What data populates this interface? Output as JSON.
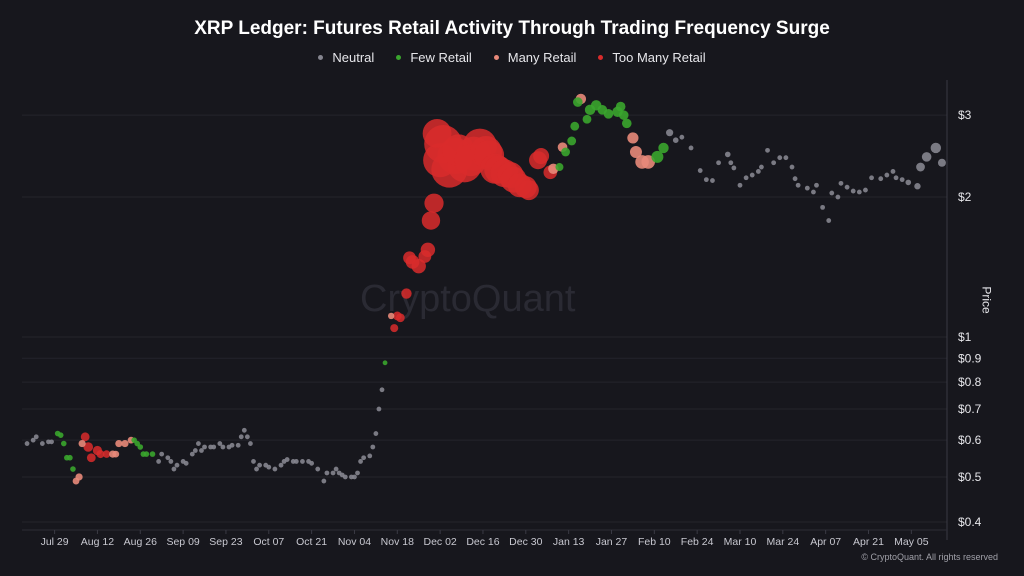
{
  "chart_data": {
    "type": "scatter",
    "title": "XRP Ledger: Futures Retail Activity Through Trading Frequency Surge",
    "ylabel": "Price",
    "y_scale": "log",
    "ylim": [
      0.4,
      3.4
    ],
    "xlim": [
      "2024-07-19",
      "2025-05-16"
    ],
    "grid": true,
    "legend_placement": "top",
    "y_ticks": [
      {
        "value": 3,
        "label": "$3"
      },
      {
        "value": 2,
        "label": "$2"
      },
      {
        "value": 1,
        "label": "$1"
      },
      {
        "value": 0.9,
        "label": "$0.9"
      },
      {
        "value": 0.8,
        "label": "$0.8"
      },
      {
        "value": 0.7,
        "label": "$0.7"
      },
      {
        "value": 0.6,
        "label": "$0.6"
      },
      {
        "value": 0.5,
        "label": "$0.5"
      },
      {
        "value": 0.4,
        "label": "$0.4"
      }
    ],
    "x_ticks": [
      {
        "date": "2024-07-29",
        "label": "Jul 29"
      },
      {
        "date": "2024-08-12",
        "label": "Aug 12"
      },
      {
        "date": "2024-08-26",
        "label": "Aug 26"
      },
      {
        "date": "2024-09-09",
        "label": "Sep 09"
      },
      {
        "date": "2024-09-23",
        "label": "Sep 23"
      },
      {
        "date": "2024-10-07",
        "label": "Oct 07"
      },
      {
        "date": "2024-10-21",
        "label": "Oct 21"
      },
      {
        "date": "2024-11-04",
        "label": "Nov 04"
      },
      {
        "date": "2024-11-18",
        "label": "Nov 18"
      },
      {
        "date": "2024-12-02",
        "label": "Dec 02"
      },
      {
        "date": "2024-12-16",
        "label": "Dec 16"
      },
      {
        "date": "2024-12-30",
        "label": "Dec 30"
      },
      {
        "date": "2025-01-13",
        "label": "Jan 13"
      },
      {
        "date": "2025-01-27",
        "label": "Jan 27"
      },
      {
        "date": "2025-02-10",
        "label": "Feb 10"
      },
      {
        "date": "2025-02-24",
        "label": "Feb 24"
      },
      {
        "date": "2025-03-10",
        "label": "Mar 10"
      },
      {
        "date": "2025-03-24",
        "label": "Mar 24"
      },
      {
        "date": "2025-04-07",
        "label": "Apr 07"
      },
      {
        "date": "2025-04-21",
        "label": "Apr 21"
      },
      {
        "date": "2025-05-05",
        "label": "May 05"
      }
    ],
    "categories": [
      {
        "key": "n",
        "name": "Neutral",
        "color": "#85858f"
      },
      {
        "key": "f",
        "name": "Few Retail",
        "color": "#3aa52e"
      },
      {
        "key": "m",
        "name": "Many Retail",
        "color": "#e8897a"
      },
      {
        "key": "t",
        "name": "Too Many Retail",
        "color": "#d92b2b"
      }
    ],
    "point_fields": [
      "date",
      "price",
      "category",
      "relative_size"
    ],
    "points": [
      [
        "2024-07-20",
        0.59,
        "n",
        1.2
      ],
      [
        "2024-07-22",
        0.6,
        "n",
        1.2
      ],
      [
        "2024-07-23",
        0.61,
        "n",
        1.2
      ],
      [
        "2024-07-25",
        0.59,
        "n",
        1.2
      ],
      [
        "2024-07-27",
        0.595,
        "n",
        1.2
      ],
      [
        "2024-07-28",
        0.595,
        "n",
        1.2
      ],
      [
        "2024-07-30",
        0.62,
        "f",
        1.4
      ],
      [
        "2024-07-31",
        0.615,
        "f",
        1.4
      ],
      [
        "2024-08-01",
        0.59,
        "f",
        1.4
      ],
      [
        "2024-08-02",
        0.55,
        "f",
        1.4
      ],
      [
        "2024-08-03",
        0.55,
        "f",
        1.4
      ],
      [
        "2024-08-04",
        0.52,
        "f",
        1.4
      ],
      [
        "2024-08-05",
        0.49,
        "m",
        1.7
      ],
      [
        "2024-08-06",
        0.5,
        "m",
        1.8
      ],
      [
        "2024-08-07",
        0.59,
        "m",
        1.8
      ],
      [
        "2024-08-08",
        0.61,
        "t",
        2.2
      ],
      [
        "2024-08-09",
        0.58,
        "t",
        2.4
      ],
      [
        "2024-08-10",
        0.55,
        "t",
        2.2
      ],
      [
        "2024-08-12",
        0.57,
        "t",
        2.3
      ],
      [
        "2024-08-13",
        0.56,
        "t",
        2.0
      ],
      [
        "2024-08-15",
        0.56,
        "t",
        1.9
      ],
      [
        "2024-08-17",
        0.56,
        "m",
        1.8
      ],
      [
        "2024-08-18",
        0.56,
        "m",
        1.7
      ],
      [
        "2024-08-19",
        0.59,
        "m",
        1.8
      ],
      [
        "2024-08-21",
        0.59,
        "m",
        1.8
      ],
      [
        "2024-08-23",
        0.6,
        "m",
        1.7
      ],
      [
        "2024-08-24",
        0.6,
        "f",
        1.4
      ],
      [
        "2024-08-25",
        0.59,
        "f",
        1.4
      ],
      [
        "2024-08-26",
        0.58,
        "f",
        1.4
      ],
      [
        "2024-08-27",
        0.56,
        "f",
        1.4
      ],
      [
        "2024-08-28",
        0.56,
        "f",
        1.4
      ],
      [
        "2024-08-30",
        0.56,
        "f",
        1.4
      ],
      [
        "2024-09-01",
        0.54,
        "n",
        1.2
      ],
      [
        "2024-09-02",
        0.56,
        "n",
        1.2
      ],
      [
        "2024-09-04",
        0.55,
        "n",
        1.2
      ],
      [
        "2024-09-05",
        0.54,
        "n",
        1.2
      ],
      [
        "2024-09-06",
        0.52,
        "n",
        1.2
      ],
      [
        "2024-09-07",
        0.53,
        "n",
        1.2
      ],
      [
        "2024-09-09",
        0.54,
        "n",
        1.2
      ],
      [
        "2024-09-10",
        0.535,
        "n",
        1.2
      ],
      [
        "2024-09-12",
        0.56,
        "n",
        1.2
      ],
      [
        "2024-09-13",
        0.57,
        "n",
        1.2
      ],
      [
        "2024-09-14",
        0.59,
        "n",
        1.2
      ],
      [
        "2024-09-15",
        0.57,
        "n",
        1.2
      ],
      [
        "2024-09-16",
        0.58,
        "n",
        1.2
      ],
      [
        "2024-09-18",
        0.58,
        "n",
        1.2
      ],
      [
        "2024-09-19",
        0.58,
        "n",
        1.2
      ],
      [
        "2024-09-21",
        0.59,
        "n",
        1.2
      ],
      [
        "2024-09-22",
        0.58,
        "n",
        1.2
      ],
      [
        "2024-09-24",
        0.58,
        "n",
        1.2
      ],
      [
        "2024-09-25",
        0.585,
        "n",
        1.2
      ],
      [
        "2024-09-27",
        0.585,
        "n",
        1.2
      ],
      [
        "2024-09-28",
        0.61,
        "n",
        1.2
      ],
      [
        "2024-09-29",
        0.63,
        "n",
        1.2
      ],
      [
        "2024-09-30",
        0.61,
        "n",
        1.2
      ],
      [
        "2024-10-01",
        0.59,
        "n",
        1.2
      ],
      [
        "2024-10-02",
        0.54,
        "n",
        1.2
      ],
      [
        "2024-10-03",
        0.52,
        "n",
        1.2
      ],
      [
        "2024-10-04",
        0.53,
        "n",
        1.2
      ],
      [
        "2024-10-06",
        0.53,
        "n",
        1.2
      ],
      [
        "2024-10-07",
        0.525,
        "n",
        1.2
      ],
      [
        "2024-10-09",
        0.52,
        "n",
        1.2
      ],
      [
        "2024-10-11",
        0.53,
        "n",
        1.2
      ],
      [
        "2024-10-12",
        0.54,
        "n",
        1.2
      ],
      [
        "2024-10-13",
        0.545,
        "n",
        1.2
      ],
      [
        "2024-10-15",
        0.54,
        "n",
        1.2
      ],
      [
        "2024-10-16",
        0.54,
        "n",
        1.2
      ],
      [
        "2024-10-18",
        0.54,
        "n",
        1.2
      ],
      [
        "2024-10-20",
        0.54,
        "n",
        1.2
      ],
      [
        "2024-10-21",
        0.535,
        "n",
        1.2
      ],
      [
        "2024-10-23",
        0.52,
        "n",
        1.2
      ],
      [
        "2024-10-25",
        0.49,
        "n",
        1.2
      ],
      [
        "2024-10-26",
        0.51,
        "n",
        1.2
      ],
      [
        "2024-10-28",
        0.51,
        "n",
        1.2
      ],
      [
        "2024-10-29",
        0.52,
        "n",
        1.2
      ],
      [
        "2024-10-30",
        0.51,
        "n",
        1.2
      ],
      [
        "2024-10-31",
        0.505,
        "n",
        1.2
      ],
      [
        "2024-11-01",
        0.5,
        "n",
        1.2
      ],
      [
        "2024-11-03",
        0.5,
        "n",
        1.2
      ],
      [
        "2024-11-04",
        0.5,
        "n",
        1.2
      ],
      [
        "2024-11-05",
        0.51,
        "n",
        1.2
      ],
      [
        "2024-11-06",
        0.54,
        "n",
        1.2
      ],
      [
        "2024-11-07",
        0.55,
        "n",
        1.2
      ],
      [
        "2024-11-09",
        0.555,
        "n",
        1.2
      ],
      [
        "2024-11-10",
        0.58,
        "n",
        1.2
      ],
      [
        "2024-11-11",
        0.62,
        "n",
        1.2
      ],
      [
        "2024-11-12",
        0.7,
        "n",
        1.2
      ],
      [
        "2024-11-13",
        0.77,
        "n",
        1.2
      ],
      [
        "2024-11-14",
        0.88,
        "f",
        1.2
      ],
      [
        "2024-11-16",
        1.11,
        "m",
        1.6
      ],
      [
        "2024-11-17",
        1.045,
        "t",
        2.0
      ],
      [
        "2024-11-18",
        1.11,
        "t",
        2.2
      ],
      [
        "2024-11-19",
        1.1,
        "t",
        2.2
      ],
      [
        "2024-11-21",
        1.24,
        "t",
        2.6
      ],
      [
        "2024-11-22",
        1.48,
        "t",
        3.2
      ],
      [
        "2024-11-23",
        1.45,
        "t",
        3.4
      ],
      [
        "2024-11-25",
        1.42,
        "t",
        3.6
      ],
      [
        "2024-11-27",
        1.49,
        "t",
        3.2
      ],
      [
        "2024-11-28",
        1.54,
        "t",
        3.6
      ],
      [
        "2024-11-29",
        1.78,
        "t",
        4.6
      ],
      [
        "2024-11-30",
        1.94,
        "t",
        4.8
      ],
      [
        "2024-12-01",
        2.74,
        "t",
        7.2
      ],
      [
        "2024-12-02",
        2.4,
        "t",
        8.5
      ],
      [
        "2024-12-03",
        2.6,
        "t",
        9.5
      ],
      [
        "2024-12-05",
        2.29,
        "t",
        9.0
      ],
      [
        "2024-12-07",
        2.45,
        "t",
        9.0
      ],
      [
        "2024-12-08",
        2.52,
        "t",
        8.0
      ],
      [
        "2024-12-10",
        2.34,
        "t",
        8.5
      ],
      [
        "2024-12-12",
        2.4,
        "t",
        8.0
      ],
      [
        "2024-12-13",
        2.48,
        "t",
        8.5
      ],
      [
        "2024-12-15",
        2.58,
        "t",
        8.5
      ],
      [
        "2024-12-17",
        2.5,
        "t",
        8.0
      ],
      [
        "2024-12-18",
        2.46,
        "t",
        7.5
      ],
      [
        "2024-12-20",
        2.3,
        "t",
        7.5
      ],
      [
        "2024-12-21",
        2.29,
        "t",
        7.0
      ],
      [
        "2024-12-23",
        2.25,
        "t",
        7.0
      ],
      [
        "2024-12-25",
        2.23,
        "t",
        6.5
      ],
      [
        "2024-12-26",
        2.18,
        "t",
        6.5
      ],
      [
        "2024-12-28",
        2.12,
        "t",
        6.0
      ],
      [
        "2024-12-30",
        2.1,
        "t",
        5.5
      ],
      [
        "2024-12-31",
        2.07,
        "t",
        5.0
      ],
      [
        "2025-01-03",
        2.4,
        "t",
        4.5
      ],
      [
        "2025-01-04",
        2.45,
        "t",
        4.0
      ],
      [
        "2025-01-07",
        2.26,
        "t",
        3.4
      ],
      [
        "2025-01-08",
        2.3,
        "m",
        2.6
      ],
      [
        "2025-01-10",
        2.32,
        "f",
        2.0
      ],
      [
        "2025-01-11",
        2.56,
        "m",
        2.4
      ],
      [
        "2025-01-12",
        2.5,
        "f",
        2.2
      ],
      [
        "2025-01-14",
        2.64,
        "f",
        2.2
      ],
      [
        "2025-01-15",
        2.84,
        "f",
        2.2
      ],
      [
        "2025-01-16",
        3.2,
        "f",
        2.4
      ],
      [
        "2025-01-17",
        3.25,
        "m",
        2.6
      ],
      [
        "2025-01-19",
        2.94,
        "f",
        2.2
      ],
      [
        "2025-01-20",
        3.08,
        "f",
        2.6
      ],
      [
        "2025-01-22",
        3.15,
        "f",
        2.6
      ],
      [
        "2025-01-24",
        3.08,
        "f",
        2.4
      ],
      [
        "2025-01-26",
        3.02,
        "f",
        2.4
      ],
      [
        "2025-01-29",
        3.05,
        "f",
        2.6
      ],
      [
        "2025-01-30",
        3.13,
        "f",
        2.4
      ],
      [
        "2025-01-31",
        3.0,
        "f",
        2.4
      ],
      [
        "2025-02-01",
        2.88,
        "f",
        2.4
      ],
      [
        "2025-02-03",
        2.68,
        "m",
        2.8
      ],
      [
        "2025-02-04",
        2.5,
        "m",
        3.0
      ],
      [
        "2025-02-06",
        2.38,
        "m",
        3.4
      ],
      [
        "2025-02-08",
        2.38,
        "m",
        3.4
      ],
      [
        "2025-02-11",
        2.44,
        "f",
        3.0
      ],
      [
        "2025-02-13",
        2.55,
        "f",
        2.6
      ],
      [
        "2025-02-15",
        2.75,
        "n",
        1.8
      ],
      [
        "2025-02-17",
        2.65,
        "n",
        1.4
      ],
      [
        "2025-02-19",
        2.69,
        "n",
        1.2
      ],
      [
        "2025-02-22",
        2.55,
        "n",
        1.2
      ],
      [
        "2025-02-25",
        2.28,
        "n",
        1.2
      ],
      [
        "2025-02-27",
        2.18,
        "n",
        1.2
      ],
      [
        "2025-03-01",
        2.17,
        "n",
        1.2
      ],
      [
        "2025-03-03",
        2.37,
        "n",
        1.2
      ],
      [
        "2025-03-06",
        2.47,
        "n",
        1.4
      ],
      [
        "2025-03-07",
        2.37,
        "n",
        1.2
      ],
      [
        "2025-03-08",
        2.31,
        "n",
        1.2
      ],
      [
        "2025-03-10",
        2.12,
        "n",
        1.2
      ],
      [
        "2025-03-12",
        2.2,
        "n",
        1.2
      ],
      [
        "2025-03-14",
        2.23,
        "n",
        1.2
      ],
      [
        "2025-03-16",
        2.27,
        "n",
        1.2
      ],
      [
        "2025-03-17",
        2.32,
        "n",
        1.2
      ],
      [
        "2025-03-19",
        2.52,
        "n",
        1.2
      ],
      [
        "2025-03-21",
        2.37,
        "n",
        1.2
      ],
      [
        "2025-03-23",
        2.43,
        "n",
        1.2
      ],
      [
        "2025-03-25",
        2.43,
        "n",
        1.2
      ],
      [
        "2025-03-27",
        2.32,
        "n",
        1.2
      ],
      [
        "2025-03-28",
        2.19,
        "n",
        1.2
      ],
      [
        "2025-03-29",
        2.12,
        "n",
        1.2
      ],
      [
        "2025-04-01",
        2.09,
        "n",
        1.2
      ],
      [
        "2025-04-03",
        2.05,
        "n",
        1.2
      ],
      [
        "2025-04-04",
        2.12,
        "n",
        1.2
      ],
      [
        "2025-04-06",
        1.9,
        "n",
        1.2
      ],
      [
        "2025-04-08",
        1.78,
        "n",
        1.2
      ],
      [
        "2025-04-09",
        2.04,
        "n",
        1.2
      ],
      [
        "2025-04-11",
        2.0,
        "n",
        1.2
      ],
      [
        "2025-04-12",
        2.14,
        "n",
        1.2
      ],
      [
        "2025-04-14",
        2.1,
        "n",
        1.2
      ],
      [
        "2025-04-16",
        2.06,
        "n",
        1.2
      ],
      [
        "2025-04-18",
        2.05,
        "n",
        1.2
      ],
      [
        "2025-04-20",
        2.07,
        "n",
        1.2
      ],
      [
        "2025-04-22",
        2.2,
        "n",
        1.2
      ],
      [
        "2025-04-25",
        2.19,
        "n",
        1.2
      ],
      [
        "2025-04-27",
        2.23,
        "n",
        1.2
      ],
      [
        "2025-04-29",
        2.27,
        "n",
        1.2
      ],
      [
        "2025-04-30",
        2.2,
        "n",
        1.2
      ],
      [
        "2025-05-02",
        2.18,
        "n",
        1.2
      ],
      [
        "2025-05-04",
        2.15,
        "n",
        1.4
      ],
      [
        "2025-05-07",
        2.11,
        "n",
        1.6
      ],
      [
        "2025-05-08",
        2.32,
        "n",
        2.2
      ],
      [
        "2025-05-10",
        2.44,
        "n",
        2.4
      ],
      [
        "2025-05-13",
        2.55,
        "n",
        2.6
      ],
      [
        "2025-05-15",
        2.37,
        "n",
        2.0
      ]
    ]
  },
  "watermark": "CryptoQuant",
  "footer": "© CryptoQuant. All rights reserved"
}
